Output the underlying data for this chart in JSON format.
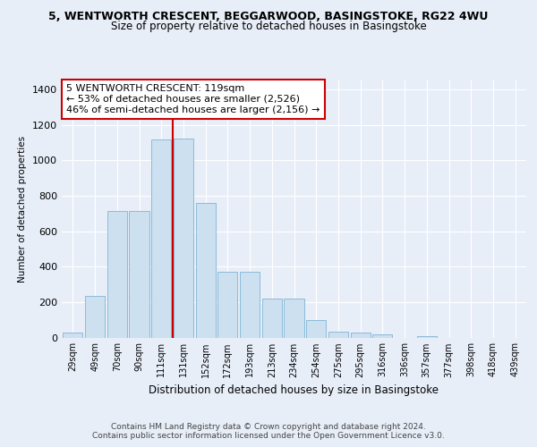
{
  "title_line1": "5, WENTWORTH CRESCENT, BEGGARWOOD, BASINGSTOKE, RG22 4WU",
  "title_line2": "Size of property relative to detached houses in Basingstoke",
  "xlabel": "Distribution of detached houses by size in Basingstoke",
  "ylabel": "Number of detached properties",
  "categories": [
    "29sqm",
    "49sqm",
    "70sqm",
    "90sqm",
    "111sqm",
    "131sqm",
    "152sqm",
    "172sqm",
    "193sqm",
    "213sqm",
    "234sqm",
    "254sqm",
    "275sqm",
    "295sqm",
    "316sqm",
    "336sqm",
    "357sqm",
    "377sqm",
    "398sqm",
    "418sqm",
    "439sqm"
  ],
  "values": [
    30,
    235,
    715,
    715,
    1115,
    1120,
    760,
    370,
    370,
    220,
    220,
    100,
    35,
    30,
    20,
    0,
    10,
    0,
    0,
    0,
    0
  ],
  "bar_color": "#cce0f0",
  "bar_edge_color": "#7fb4d4",
  "vline_x": 4.5,
  "vline_color": "#cc0000",
  "annotation_text": "5 WENTWORTH CRESCENT: 119sqm\n← 53% of detached houses are smaller (2,526)\n46% of semi-detached houses are larger (2,156) →",
  "annotation_box_color": "#ffffff",
  "annotation_box_edge": "#cc0000",
  "ylim": [
    0,
    1450
  ],
  "yticks": [
    0,
    200,
    400,
    600,
    800,
    1000,
    1200,
    1400
  ],
  "footer_line1": "Contains HM Land Registry data © Crown copyright and database right 2024.",
  "footer_line2": "Contains public sector information licensed under the Open Government Licence v3.0.",
  "bg_color": "#e8eef8",
  "plot_bg_color": "#e8eef8",
  "title_fontsize": 9,
  "subtitle_fontsize": 8.5
}
